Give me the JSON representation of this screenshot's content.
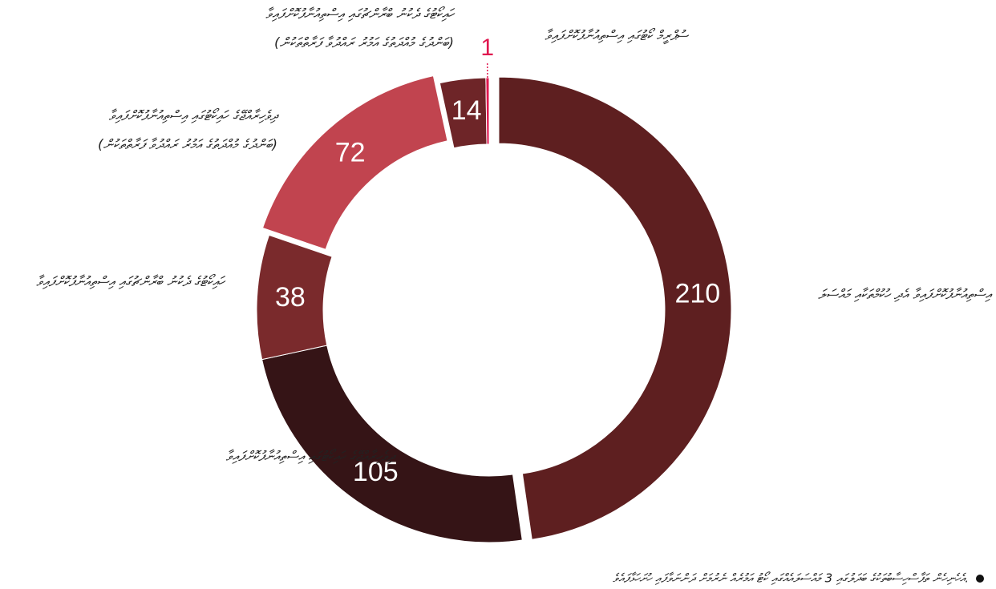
{
  "chart_data": {
    "type": "donut",
    "categories": [
      "އިސްތިއުނާފުކޮށްފައިވާ އެދި ހުކުމްތަކާއި މައްސަލަ",
      "ދިވެހިރާއްޖޭގެ ހައިކޯޓުގައި އިސްތިއުނާފުކޮށްފައިވާ",
      "ހައިކޯޓުގެ ދެކުނު ބްރާންޗުގައި އިސްތިއުނާފުކޮށްފައިވާ",
      [
        "ދިވެހިރާއްޖޭގެ ހައިކޯޓުގައި އިސްތިއުނާފުކޮށްފައިވާ",
        "(ބަންދުގެ މުއްދަތުގެ އަމުރު ރައްދުވާ ފަރާތްތަކުން)"
      ],
      [
        "ހައިކޯޓުގެ ދެކުނު ބްރާންޗުގައި އިސްތިއުނާފުކޮށްފައިވާ",
        "(ބަންދުގެ މުއްދަތުގެ އަމުރު ރައްދުވާ ފަރާތްތަކުން)"
      ],
      "ސުޕްރީމް ކޯޓުގައި އިސްތިއުނާފުކޮށްފައިވާ"
    ],
    "values": [
      210,
      105,
      38,
      72,
      14,
      1
    ],
    "colors": [
      "#5e1f20",
      "#351416",
      "#7a2a2c",
      "#c1444f",
      "#6e2528",
      "#e0174f"
    ],
    "exploded": [
      0,
      3
    ],
    "footnote": "އެހެނިހެން ތަފާސްހިސާބުތަކުގެ ބަދަލުގައި 3 މައްސަލައެއްގައި ކޯޓު އަމުރެއް ނެރުމަށް ދަންނަވާފައި ހުށަހަޅާފައެވެ."
  }
}
